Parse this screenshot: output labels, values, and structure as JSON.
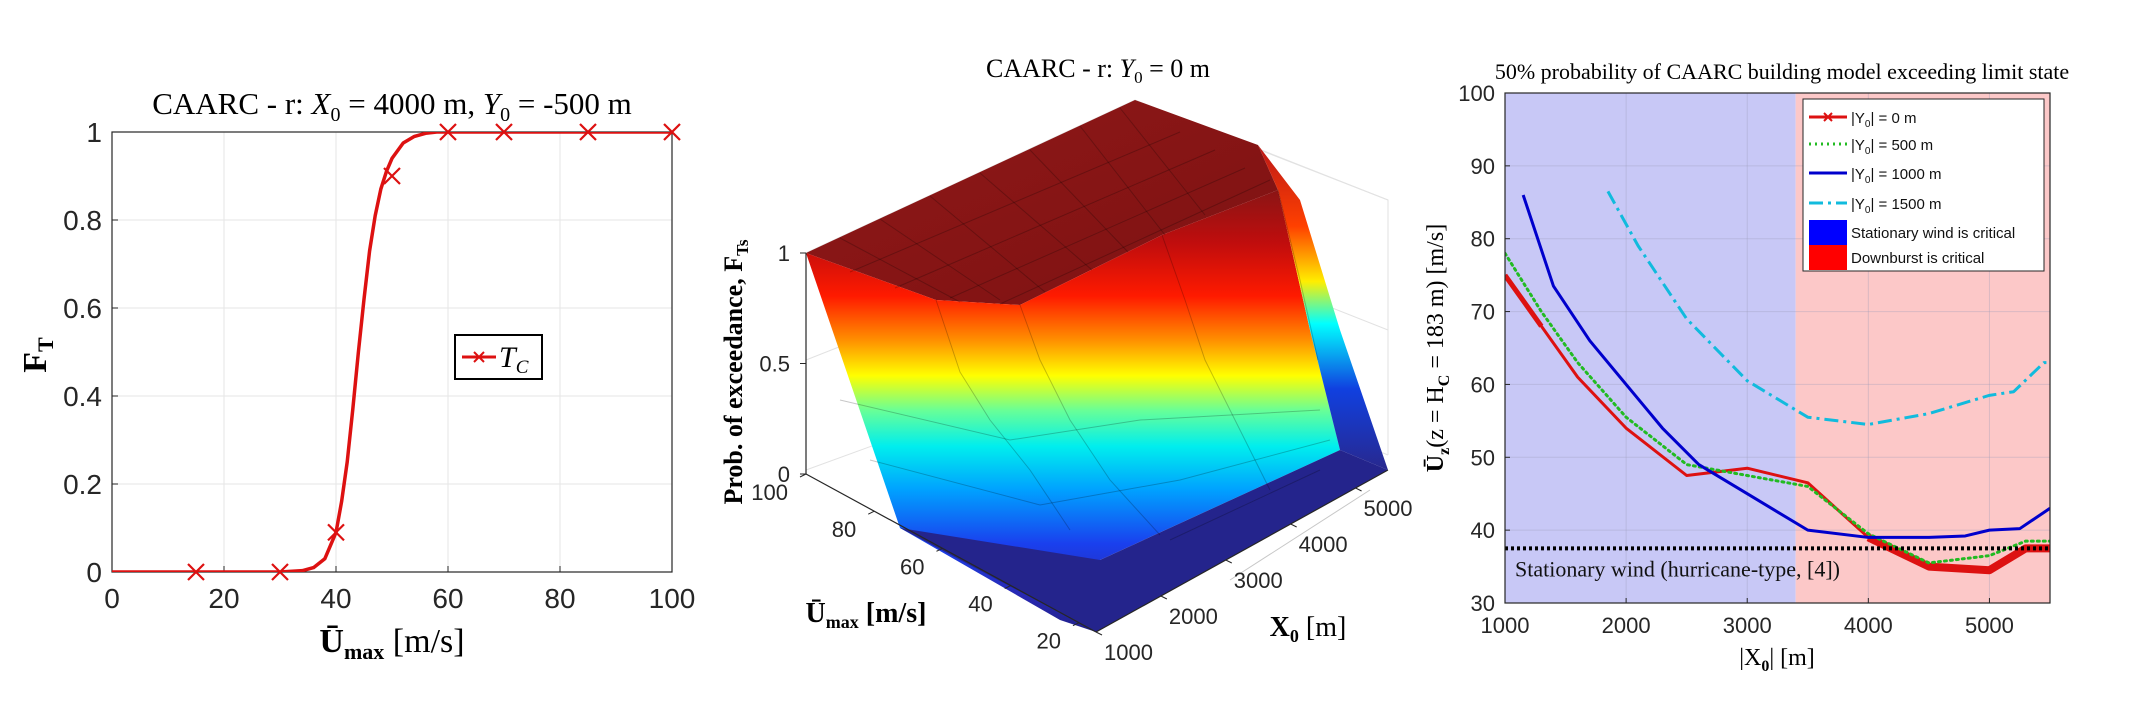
{
  "chart_data": [
    {
      "type": "line",
      "title": "CAARC - r:  X0 = 4000 m, Y0 = -500 m",
      "title_parts": [
        "CAARC - r:  ",
        "X",
        "0",
        " = 4000 m, ",
        "Y",
        "0",
        " = -500 m"
      ],
      "xlabel": "Ūmax [m/s]",
      "xlabel_parts": [
        "Ū",
        "max",
        " [m/s]"
      ],
      "ylabel": "FT",
      "ylabel_parts": [
        "F",
        "T"
      ],
      "xlim": [
        0,
        100
      ],
      "ylim": [
        0,
        1
      ],
      "xticks": [
        "0",
        "20",
        "40",
        "60",
        "80",
        "100"
      ],
      "yticks": [
        "0",
        "0.2",
        "0.4",
        "0.6",
        "0.8",
        "1"
      ],
      "grid": true,
      "legend_position": "center-right",
      "series": [
        {
          "name": "TC",
          "name_parts": [
            "T",
            "C"
          ],
          "color": "#dd1111",
          "curve_x": [
            0,
            30,
            34,
            36,
            38,
            40,
            41,
            42,
            43,
            44,
            45,
            46,
            47,
            48,
            49,
            50,
            52,
            54,
            56,
            58,
            60,
            100
          ],
          "curve_y": [
            0,
            0,
            0.003,
            0.01,
            0.03,
            0.09,
            0.16,
            0.25,
            0.37,
            0.5,
            0.62,
            0.73,
            0.81,
            0.87,
            0.91,
            0.94,
            0.975,
            0.99,
            0.997,
            1.0,
            1.0,
            1.0
          ],
          "marker_x": [
            15,
            30,
            40,
            50,
            60,
            70,
            85,
            100
          ],
          "marker_y": [
            0,
            0,
            0.09,
            0.9,
            1,
            1,
            1,
            1
          ]
        }
      ]
    },
    {
      "type": "surface",
      "title": "CAARC - r:  Y0 = 0 m",
      "title_parts": [
        "CAARC - r:  ",
        "Y",
        "0",
        " = 0 m"
      ],
      "zlabel": "Prob. of exceedance, FTs",
      "zlabel_parts": [
        "Prob. of exceedance, F",
        "Ts"
      ],
      "xlabel": "Ūmax [m/s]",
      "xlabel_parts": [
        "Ū",
        "max",
        " [m/s]"
      ],
      "ylabel": "X0 [m]",
      "ylabel_parts": [
        "X",
        "0",
        " [m]"
      ],
      "umax_ticks": [
        "100",
        "80",
        "60",
        "40",
        "20"
      ],
      "x0_ticks": [
        "1000",
        "2000",
        "3000",
        "4000",
        "5000"
      ],
      "z_ticks": [
        "1",
        "0.5",
        "0"
      ],
      "umax_range": [
        15,
        100
      ],
      "x0_range": [
        1000,
        5500
      ],
      "zlim": [
        0,
        1
      ],
      "colormap": "jet"
    },
    {
      "type": "line",
      "title": "50% probability of CAARC building model exceeding limit state",
      "xlabel": "|X0| [m]",
      "xlabel_parts": [
        "|X",
        "0",
        "| [m]"
      ],
      "ylabel": "Ūz(z = HC = 183  m) [m/s]",
      "ylabel_parts": [
        "Ū",
        "z",
        "(z = H",
        "C",
        " = 183  m) [m/s]"
      ],
      "xlim": [
        1000,
        5500
      ],
      "ylim": [
        30,
        100
      ],
      "xticks": [
        "1000",
        "2000",
        "3000",
        "4000",
        "5000"
      ],
      "yticks": [
        "30",
        "40",
        "50",
        "60",
        "70",
        "80",
        "90",
        "100"
      ],
      "grid": true,
      "legend_position": "top-right",
      "regions": [
        {
          "name": "Stationary wind is critical",
          "x_range": [
            1000,
            3400
          ],
          "color": "#c8c8f6",
          "swatch": "#0000ff"
        },
        {
          "name": "Downburst is critical",
          "x_range": [
            3400,
            5500
          ],
          "color": "#fcc8c8",
          "swatch": "#ff0000"
        }
      ],
      "reference_line": {
        "label": "Stationary wind (hurricane-type, [4])",
        "y": 37.5
      },
      "series": [
        {
          "name": "|Y0| = 0 m",
          "name_parts": [
            "|Y",
            "0",
            "| = 0 m"
          ],
          "color": "#dd1111",
          "style": "solid-marker",
          "x": [
            1000,
            1300,
            1600,
            2000,
            2500,
            3000,
            3500,
            4000,
            4500,
            5000,
            5300,
            5500
          ],
          "y": [
            75,
            68,
            61,
            54,
            47.5,
            48.5,
            46.5,
            39,
            35,
            34.5,
            37.5,
            37.5
          ]
        },
        {
          "name": "|Y0| = 500 m",
          "name_parts": [
            "|Y",
            "0",
            "| = 500 m"
          ],
          "color": "#22bb22",
          "style": "dotted",
          "x": [
            1000,
            1300,
            1600,
            2000,
            2500,
            3000,
            3500,
            4000,
            4500,
            5000,
            5300,
            5500
          ],
          "y": [
            78,
            70,
            63,
            55.5,
            49,
            47.5,
            46,
            39.5,
            35.5,
            36.5,
            38.5,
            38.5
          ]
        },
        {
          "name": "|Y0| = 1000 m",
          "name_parts": [
            "|Y",
            "0",
            "| = 1000 m"
          ],
          "color": "#0000cc",
          "style": "solid",
          "x": [
            1150,
            1400,
            1700,
            2000,
            2300,
            2600,
            3000,
            3500,
            4000,
            4500,
            4800,
            5000,
            5250,
            5500
          ],
          "y": [
            86,
            73.5,
            66,
            60,
            54,
            49,
            45,
            40,
            39,
            39,
            39.2,
            40,
            40.2,
            43
          ]
        },
        {
          "name": "|Y0| = 1500 m",
          "name_parts": [
            "|Y",
            "0",
            "| = 1500 m"
          ],
          "color": "#11bbdd",
          "style": "dash-dot",
          "x": [
            1850,
            2100,
            2500,
            3000,
            3500,
            4000,
            4500,
            5000,
            5200,
            5450,
            5500
          ],
          "y": [
            86.5,
            79,
            69,
            60.5,
            55.5,
            54.5,
            56,
            58.5,
            59,
            63,
            63
          ]
        }
      ]
    }
  ]
}
